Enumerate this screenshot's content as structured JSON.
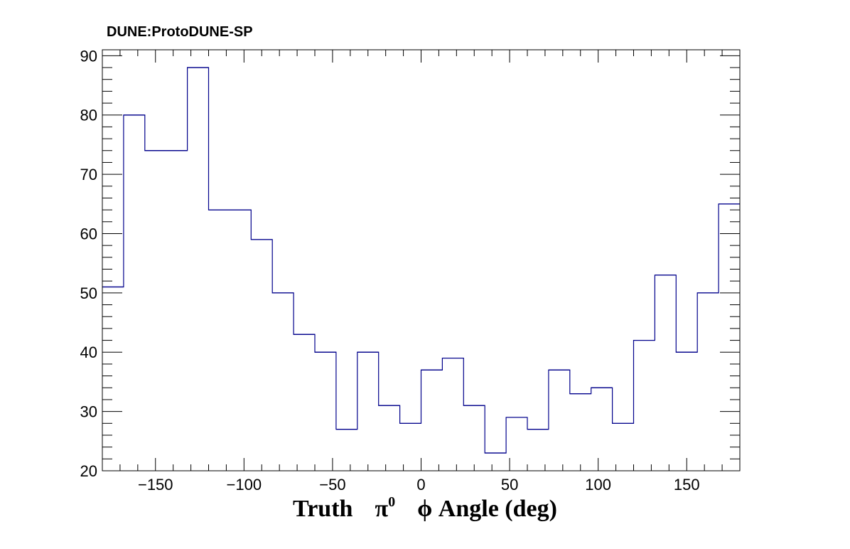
{
  "chart_data": {
    "type": "histogram",
    "title": "DUNE:ProtoDUNE-SP",
    "xlabel": {
      "prefix": "Truth",
      "symbol": "π",
      "superscript": "0",
      "suffix": "ϕ Angle (deg)"
    },
    "ylabel": "",
    "xlim": [
      -180,
      180
    ],
    "ylim": [
      20,
      91
    ],
    "x_ticks": [
      -150,
      -100,
      -50,
      0,
      50,
      100,
      150
    ],
    "x_tick_labels": [
      "−150",
      "−100",
      "−50",
      "0",
      "50",
      "100",
      "150"
    ],
    "y_ticks": [
      20,
      30,
      40,
      50,
      60,
      70,
      80,
      90
    ],
    "y_tick_labels": [
      "20",
      "30",
      "40",
      "50",
      "60",
      "70",
      "80",
      "90"
    ],
    "bin_edges": [
      -180,
      -168,
      -156,
      -144,
      -132,
      -120,
      -108,
      -96,
      -84,
      -72,
      -60,
      -48,
      -36,
      -24,
      -12,
      0,
      12,
      24,
      36,
      48,
      60,
      72,
      84,
      96,
      108,
      120,
      132,
      144,
      156,
      168,
      180
    ],
    "values": [
      51,
      80,
      74,
      74,
      88,
      64,
      64,
      59,
      50,
      43,
      40,
      27,
      40,
      31,
      28,
      37,
      39,
      31,
      23,
      29,
      27,
      37,
      33,
      34,
      28,
      42,
      53,
      40,
      50,
      65
    ],
    "line_color": "#00008b",
    "grid": false
  }
}
